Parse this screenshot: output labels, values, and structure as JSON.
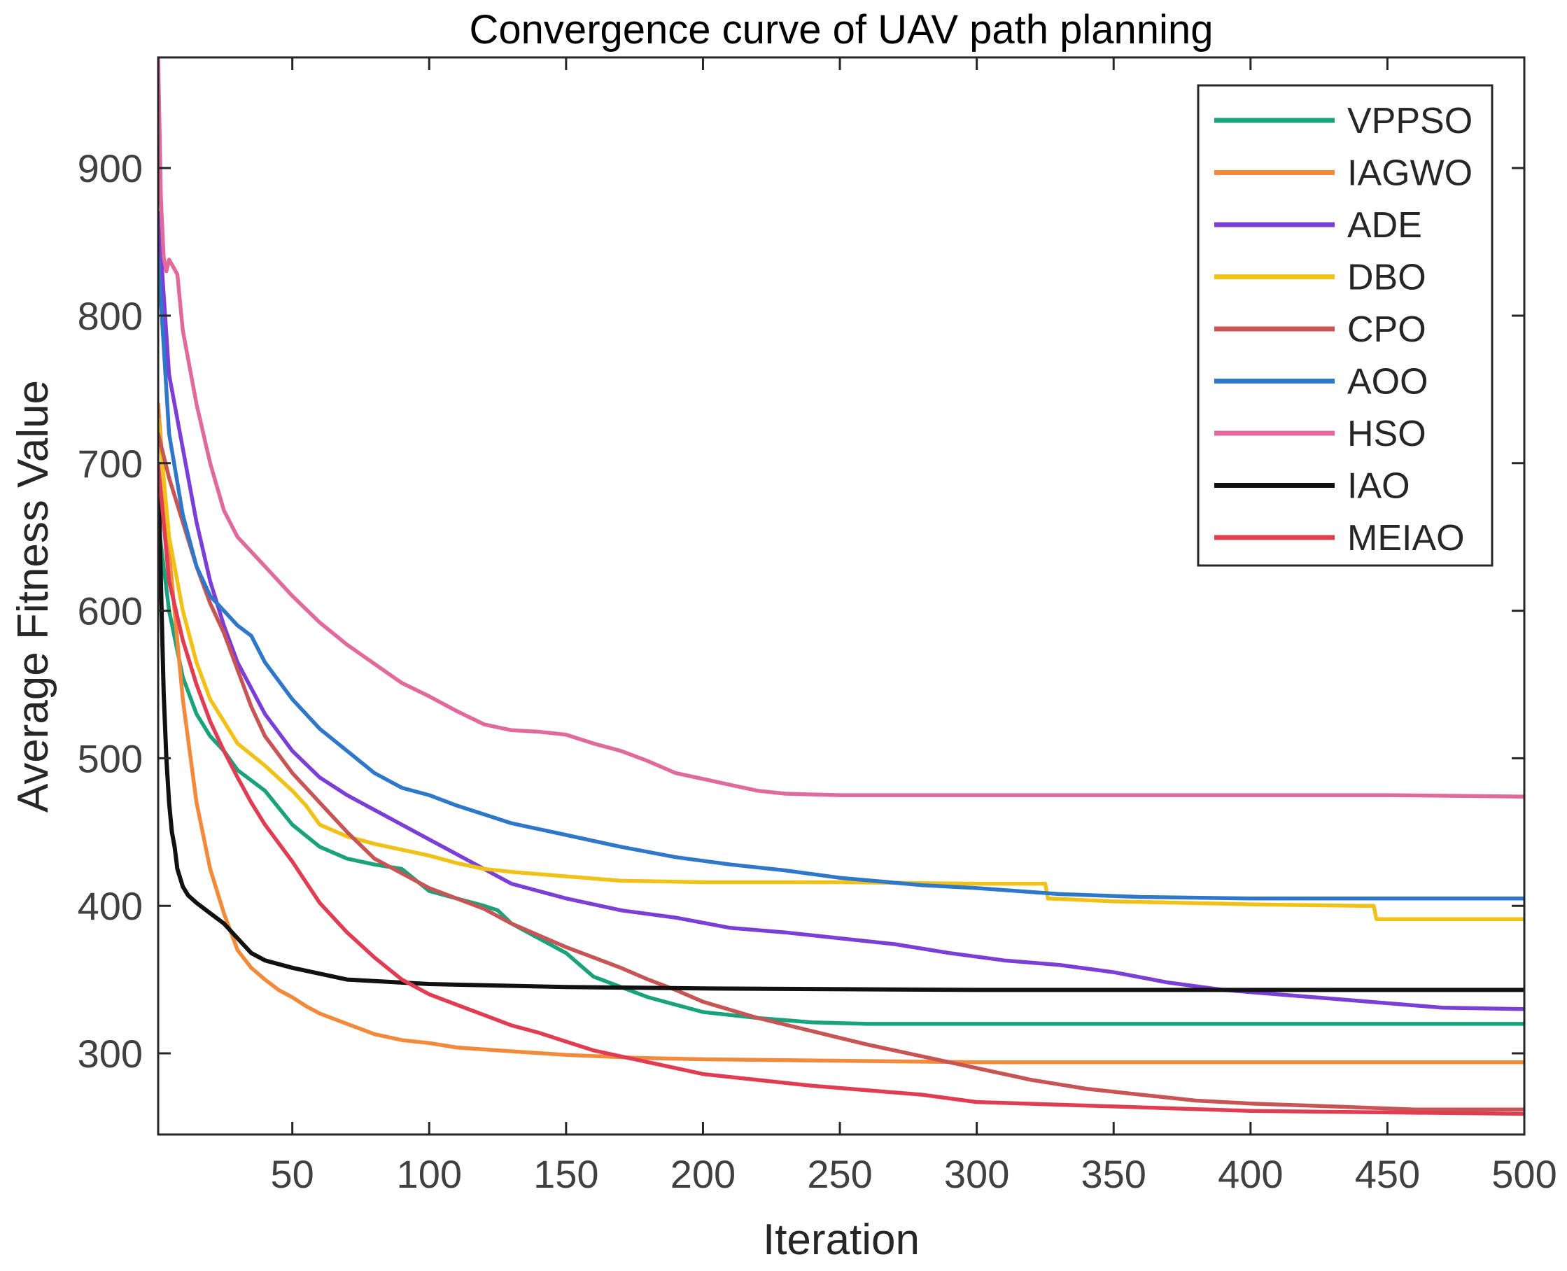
{
  "chart_data": {
    "type": "line",
    "title": "Convergence curve of UAV path planning",
    "xlabel": "Iteration",
    "ylabel": "Average Fitness Value",
    "xlim": [
      1,
      500
    ],
    "ylim": [
      245,
      975
    ],
    "xticks": [
      50,
      100,
      150,
      200,
      250,
      300,
      350,
      400,
      450,
      500
    ],
    "yticks": [
      300,
      400,
      500,
      600,
      700,
      800,
      900
    ],
    "grid": false,
    "legend_position": "top-right",
    "series": [
      {
        "name": "VPPSO",
        "color": "#1aa37a",
        "x": [
          1,
          5,
          10,
          15,
          20,
          25,
          30,
          40,
          50,
          60,
          70,
          80,
          90,
          100,
          110,
          120,
          125,
          130,
          140,
          150,
          160,
          170,
          180,
          190,
          200,
          220,
          240,
          260,
          300,
          350,
          400,
          450,
          500
        ],
        "y": [
          660,
          600,
          555,
          530,
          515,
          505,
          492,
          478,
          455,
          440,
          432,
          428,
          425,
          410,
          405,
          400,
          397,
          388,
          378,
          368,
          352,
          345,
          338,
          333,
          328,
          324,
          321,
          320,
          320,
          320,
          320,
          320,
          320
        ]
      },
      {
        "name": "IAGWO",
        "color": "#f28a3c",
        "x": [
          1,
          5,
          10,
          15,
          20,
          25,
          30,
          35,
          40,
          45,
          50,
          55,
          60,
          70,
          80,
          90,
          100,
          110,
          125,
          150,
          175,
          200,
          250,
          300,
          350,
          400,
          450,
          500
        ],
        "y": [
          740,
          640,
          540,
          470,
          425,
          395,
          370,
          358,
          350,
          343,
          338,
          332,
          327,
          320,
          313,
          309,
          307,
          304,
          302,
          299,
          297,
          296,
          295,
          294,
          294,
          294,
          294,
          294
        ]
      },
      {
        "name": "ADE",
        "color": "#7b3fd6",
        "x": [
          1,
          5,
          10,
          15,
          20,
          25,
          30,
          40,
          50,
          60,
          70,
          80,
          90,
          100,
          110,
          120,
          130,
          150,
          170,
          190,
          210,
          230,
          250,
          270,
          290,
          310,
          330,
          350,
          370,
          390,
          410,
          430,
          450,
          470,
          500
        ],
        "y": [
          870,
          760,
          710,
          660,
          620,
          590,
          565,
          530,
          505,
          487,
          475,
          465,
          455,
          445,
          435,
          425,
          415,
          405,
          397,
          392,
          385,
          382,
          378,
          374,
          368,
          363,
          360,
          355,
          348,
          343,
          340,
          337,
          334,
          331,
          330
        ]
      },
      {
        "name": "DBO",
        "color": "#f0c218",
        "x": [
          1,
          5,
          10,
          15,
          20,
          25,
          30,
          40,
          50,
          55,
          60,
          70,
          80,
          90,
          100,
          110,
          120,
          130,
          150,
          170,
          200,
          250,
          300,
          325,
          326,
          350,
          400,
          440,
          445,
          446,
          450,
          500
        ],
        "y": [
          730,
          650,
          600,
          565,
          540,
          525,
          510,
          495,
          478,
          468,
          455,
          447,
          442,
          438,
          434,
          429,
          425,
          423,
          420,
          417,
          416,
          416,
          415,
          415,
          405,
          403,
          401,
          400,
          400,
          391,
          391,
          391
        ]
      },
      {
        "name": "CPO",
        "color": "#c85555",
        "x": [
          1,
          5,
          10,
          15,
          20,
          25,
          30,
          35,
          40,
          50,
          60,
          70,
          80,
          90,
          100,
          110,
          120,
          130,
          140,
          150,
          160,
          170,
          180,
          190,
          200,
          220,
          240,
          260,
          280,
          300,
          320,
          340,
          360,
          380,
          400,
          430,
          460,
          500
        ],
        "y": [
          720,
          690,
          660,
          630,
          605,
          585,
          560,
          535,
          515,
          490,
          470,
          450,
          432,
          422,
          412,
          405,
          398,
          388,
          380,
          372,
          365,
          358,
          350,
          343,
          335,
          324,
          315,
          306,
          298,
          290,
          282,
          276,
          272,
          268,
          266,
          264,
          262,
          262
        ]
      },
      {
        "name": "AOO",
        "color": "#2f77c9",
        "x": [
          1,
          5,
          10,
          15,
          20,
          25,
          30,
          35,
          40,
          50,
          60,
          70,
          80,
          90,
          100,
          110,
          120,
          130,
          150,
          170,
          190,
          210,
          230,
          250,
          280,
          300,
          330,
          360,
          400,
          450,
          500
        ],
        "y": [
          840,
          720,
          665,
          630,
          610,
          600,
          590,
          583,
          565,
          540,
          520,
          505,
          490,
          480,
          475,
          468,
          462,
          456,
          448,
          440,
          433,
          428,
          424,
          419,
          414,
          412,
          408,
          406,
          405,
          405,
          405
        ]
      },
      {
        "name": "HSO",
        "color": "#e06a9c",
        "x": [
          1,
          2,
          3,
          4,
          5,
          8,
          10,
          15,
          20,
          25,
          30,
          40,
          50,
          60,
          70,
          80,
          90,
          100,
          110,
          120,
          130,
          140,
          150,
          160,
          170,
          180,
          190,
          200,
          210,
          220,
          230,
          250,
          300,
          350,
          400,
          450,
          500
        ],
        "y": [
          975,
          880,
          840,
          830,
          838,
          828,
          790,
          740,
          700,
          668,
          650,
          630,
          610,
          592,
          577,
          564,
          551,
          542,
          532,
          523,
          519,
          518,
          516,
          510,
          505,
          498,
          490,
          486,
          482,
          478,
          476,
          475,
          475,
          475,
          475,
          475,
          474
        ]
      },
      {
        "name": "IAO",
        "color": "#111111",
        "x": [
          1,
          2,
          3,
          4,
          5,
          6,
          7,
          8,
          10,
          12,
          15,
          20,
          25,
          30,
          35,
          40,
          50,
          60,
          70,
          80,
          100,
          150,
          200,
          300,
          400,
          500
        ],
        "y": [
          700,
          620,
          545,
          500,
          470,
          450,
          440,
          425,
          413,
          407,
          402,
          395,
          388,
          378,
          368,
          363,
          358,
          354,
          350,
          349,
          347,
          345,
          344,
          343,
          343,
          343
        ]
      },
      {
        "name": "MEIAO",
        "color": "#e03c52",
        "x": [
          1,
          5,
          10,
          15,
          20,
          25,
          30,
          35,
          40,
          50,
          60,
          70,
          80,
          90,
          100,
          110,
          120,
          130,
          140,
          150,
          160,
          170,
          180,
          190,
          200,
          220,
          240,
          260,
          280,
          300,
          350,
          400,
          450,
          500
        ],
        "y": [
          700,
          620,
          580,
          550,
          525,
          505,
          487,
          470,
          455,
          430,
          402,
          382,
          365,
          350,
          340,
          333,
          326,
          319,
          314,
          308,
          302,
          298,
          294,
          290,
          286,
          282,
          278,
          275,
          272,
          267,
          264,
          261,
          260,
          259
        ]
      }
    ]
  }
}
